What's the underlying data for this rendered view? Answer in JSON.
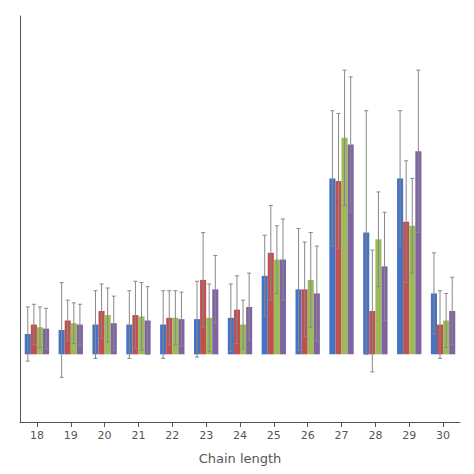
{
  "chart_data": {
    "type": "bar",
    "xlabel": "Chain length",
    "categories": [
      18,
      19,
      20,
      21,
      22,
      23,
      24,
      25,
      26,
      27,
      28,
      29,
      30
    ],
    "series": [
      {
        "color": "#4472C4",
        "values": [
          1.5,
          1.8,
          2.2,
          2.2,
          2.2,
          2.6,
          2.7,
          5.8,
          4.8,
          13.0,
          9.0,
          13.0,
          4.5
        ],
        "errors": [
          2.0,
          3.5,
          2.5,
          2.5,
          2.5,
          2.8,
          2.5,
          3.0,
          4.5,
          5.0,
          9.0,
          5.0,
          3.0
        ]
      },
      {
        "color": "#C0504D",
        "values": [
          2.2,
          2.5,
          3.2,
          2.9,
          2.7,
          5.5,
          3.3,
          7.5,
          4.8,
          12.8,
          3.2,
          9.8,
          2.2
        ],
        "errors": [
          1.5,
          1.5,
          2.0,
          2.5,
          2.0,
          3.5,
          2.5,
          3.5,
          3.5,
          5.0,
          4.5,
          4.5,
          2.5
        ]
      },
      {
        "color": "#9BBB59",
        "values": [
          2.0,
          2.3,
          2.9,
          2.8,
          2.7,
          2.7,
          2.2,
          7.0,
          5.5,
          16.0,
          8.5,
          9.5,
          2.5
        ],
        "errors": [
          1.5,
          1.5,
          2.0,
          2.5,
          2.0,
          2.5,
          1.8,
          2.5,
          3.5,
          5.0,
          3.5,
          3.5,
          2.0
        ]
      },
      {
        "color": "#8064A2",
        "values": [
          1.9,
          2.2,
          2.3,
          2.5,
          2.6,
          4.8,
          3.5,
          7.0,
          4.5,
          15.5,
          6.5,
          15.0,
          3.2
        ],
        "errors": [
          1.5,
          1.5,
          2.0,
          2.5,
          2.0,
          2.5,
          2.5,
          3.0,
          3.5,
          5.0,
          4.0,
          6.0,
          2.5
        ]
      }
    ],
    "ylim": [
      -5,
      25
    ],
    "tick_labels": "x",
    "grid": false
  }
}
